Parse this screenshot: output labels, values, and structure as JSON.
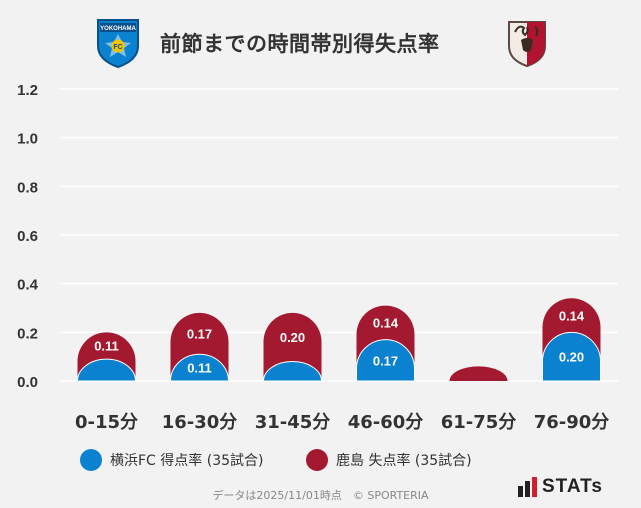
{
  "header": {
    "title": "前節までの時間帯別得失点率",
    "home_logo_text": "YOKOHAMA",
    "home_logo_badge": "FC"
  },
  "colors": {
    "home": "#0b82cf",
    "away": "#a3192f",
    "grid": "#ffffff",
    "background": "#f2f2f2"
  },
  "chart_data": {
    "type": "bar",
    "categories": [
      "0-15分",
      "16-30分",
      "31-45分",
      "46-60分",
      "61-75分",
      "76-90分"
    ],
    "series": [
      {
        "name": "横浜FC 得点率 (35試合)",
        "values": [
          0.09,
          0.11,
          0.08,
          0.17,
          0.0,
          0.2
        ],
        "labels": [
          "",
          "0.11",
          "",
          "0.17",
          "",
          "0.20"
        ],
        "color": "#0b82cf"
      },
      {
        "name": "鹿島 失点率 (35試合)",
        "values": [
          0.11,
          0.17,
          0.2,
          0.14,
          0.06,
          0.14
        ],
        "labels": [
          "0.11",
          "0.17",
          "0.20",
          "0.14",
          "",
          "0.14"
        ],
        "color": "#a3192f"
      }
    ],
    "yticks": [
      "0.0",
      "0.2",
      "0.4",
      "0.6",
      "0.8",
      "1.0",
      "1.2"
    ],
    "ylim": [
      0,
      1.2
    ],
    "title": "前節までの時間帯別得失点率"
  },
  "legend": {
    "home": "横浜FC 得点率 (35試合)",
    "away": "鹿島 失点率 (35試合)"
  },
  "footer": {
    "note": "データは2025/11/01時点　© SPORTERIA",
    "brand": "STATs"
  }
}
